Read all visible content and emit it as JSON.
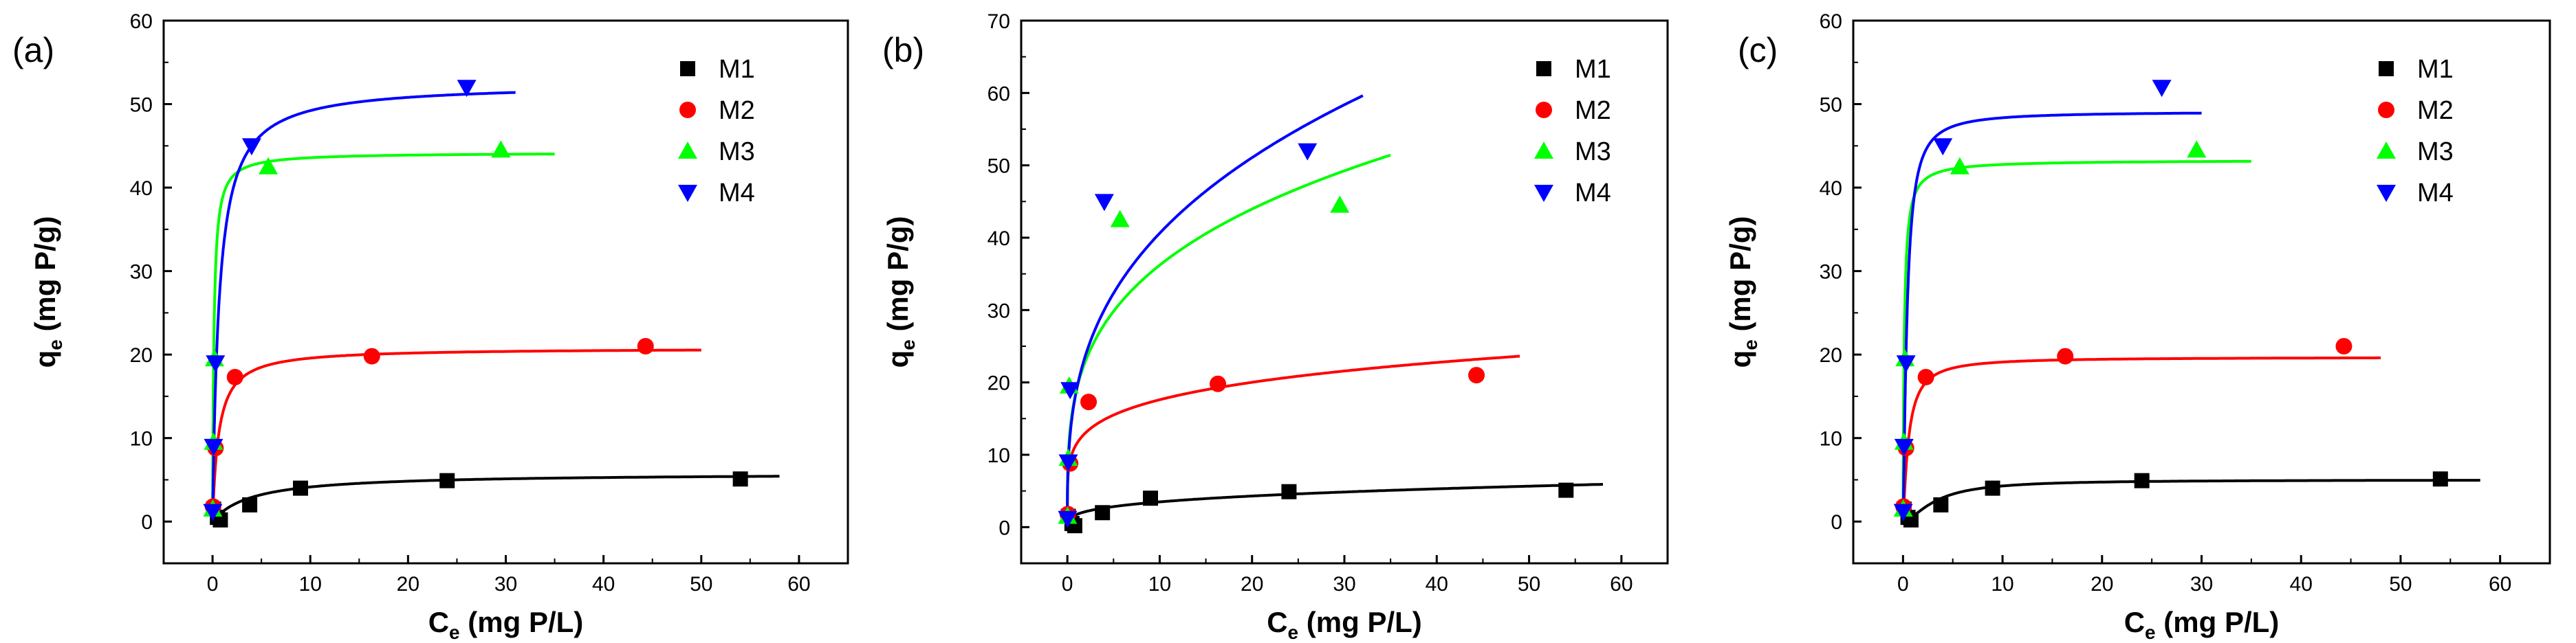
{
  "figure": {
    "panels": [
      {
        "panel_label": "(a)",
        "chart_data": {
          "type": "scatter",
          "xlabel": "C",
          "xlabel_sub": "e",
          "xlabel_unit": "(mg P/L)",
          "ylabel": "q",
          "ylabel_sub": "e",
          "ylabel_unit": "(mg P/g)",
          "xlim": [
            -5,
            65
          ],
          "ylim": [
            -5,
            60
          ],
          "xticks": [
            0,
            10,
            20,
            30,
            40,
            50,
            60
          ],
          "yticks": [
            0,
            10,
            20,
            30,
            40,
            50,
            60
          ],
          "xtick_labels": [
            "0",
            "10",
            "20",
            "30",
            "40",
            "50",
            "60"
          ],
          "ytick_labels": [
            "0",
            "10",
            "20",
            "30",
            "40",
            "50",
            "60"
          ],
          "legend_position": "top-right",
          "series": [
            {
              "name": "M1",
              "color": "#000000",
              "marker": "square",
              "points": [
                [
                  0.1,
                  1.5
                ],
                [
                  0.5,
                  0.5
                ],
                [
                  0.8,
                  0.2
                ],
                [
                  3.8,
                  2.0
                ],
                [
                  9.0,
                  4.0
                ],
                [
                  24.0,
                  4.9
                ],
                [
                  54.0,
                  5.1
                ]
              ],
              "fit": {
                "model": "langmuir",
                "qmax": 5.8,
                "K": 0.25,
                "xmax": 58
              }
            },
            {
              "name": "M2",
              "color": "#ff0000",
              "marker": "circle",
              "points": [
                [
                  0.05,
                  1.8
                ],
                [
                  0.3,
                  8.8
                ],
                [
                  2.3,
                  17.3
                ],
                [
                  16.3,
                  19.8
                ],
                [
                  44.3,
                  21.0
                ]
              ],
              "fit": {
                "model": "langmuir",
                "qmax": 20.8,
                "K": 1.6,
                "xmax": 50
              }
            },
            {
              "name": "M3",
              "color": "#00ff00",
              "marker": "triangle-up",
              "points": [
                [
                  0.02,
                  1.5
                ],
                [
                  0.1,
                  9.5
                ],
                [
                  0.2,
                  19.5
                ],
                [
                  5.7,
                  42.5
                ],
                [
                  29.5,
                  44.5
                ]
              ],
              "fit": {
                "model": "langmuir",
                "qmax": 44.2,
                "K": 7.0,
                "xmax": 35
              }
            },
            {
              "name": "M4",
              "color": "#0000ff",
              "marker": "triangle-down",
              "points": [
                [
                  0.02,
                  1.2
                ],
                [
                  0.1,
                  9.0
                ],
                [
                  0.3,
                  19.0
                ],
                [
                  4.0,
                  45.0
                ],
                [
                  26.0,
                  52.0
                ]
              ],
              "fit": {
                "model": "langmuir",
                "qmax": 52.5,
                "K": 1.5,
                "xmax": 31
              }
            }
          ]
        }
      },
      {
        "panel_label": "(b)",
        "chart_data": {
          "type": "scatter",
          "xlabel": "C",
          "xlabel_sub": "e",
          "xlabel_unit": "(mg P/L)",
          "ylabel": "q",
          "ylabel_sub": "e",
          "ylabel_unit": "(mg P/g)",
          "xlim": [
            -5,
            65
          ],
          "ylim": [
            -5,
            70
          ],
          "xticks": [
            0,
            10,
            20,
            30,
            40,
            50,
            60
          ],
          "yticks": [
            0,
            10,
            20,
            30,
            40,
            50,
            60,
            70
          ],
          "xtick_labels": [
            "0",
            "10",
            "20",
            "30",
            "40",
            "50",
            "60"
          ],
          "ytick_labels": [
            "0",
            "10",
            "20",
            "30",
            "40",
            "50",
            "60",
            "70"
          ],
          "legend_position": "top-right",
          "series": [
            {
              "name": "M1",
              "color": "#000000",
              "marker": "square",
              "points": [
                [
                  0.1,
                  1.5
                ],
                [
                  0.5,
                  0.5
                ],
                [
                  0.8,
                  0.2
                ],
                [
                  3.8,
                  2.0
                ],
                [
                  9.0,
                  4.0
                ],
                [
                  24.0,
                  4.9
                ],
                [
                  54.0,
                  5.1
                ]
              ],
              "fit": {
                "model": "freundlich",
                "K": 1.75,
                "n": 0.3,
                "xmax": 58
              }
            },
            {
              "name": "M2",
              "color": "#ff0000",
              "marker": "circle",
              "points": [
                [
                  0.05,
                  1.8
                ],
                [
                  0.3,
                  8.8
                ],
                [
                  2.3,
                  17.3
                ],
                [
                  16.3,
                  19.8
                ],
                [
                  44.3,
                  21.0
                ]
              ],
              "fit": {
                "model": "freundlich",
                "K": 11.5,
                "n": 0.185,
                "xmax": 49
              }
            },
            {
              "name": "M3",
              "color": "#00ff00",
              "marker": "triangle-up",
              "points": [
                [
                  0.02,
                  1.5
                ],
                [
                  0.1,
                  9.5
                ],
                [
                  0.2,
                  19.5
                ],
                [
                  5.7,
                  42.5
                ],
                [
                  29.5,
                  44.5
                ]
              ],
              "fit": {
                "model": "freundlich",
                "K": 19.0,
                "n": 0.28,
                "xmax": 35
              }
            },
            {
              "name": "M4",
              "color": "#0000ff",
              "marker": "triangle-down",
              "points": [
                [
                  0.02,
                  1.2
                ],
                [
                  0.1,
                  9.0
                ],
                [
                  0.3,
                  19.0
                ],
                [
                  4.0,
                  45.0
                ],
                [
                  26.0,
                  52.0
                ]
              ],
              "fit": {
                "model": "freundlich",
                "K": 19.0,
                "n": 0.33,
                "xmax": 32
              }
            }
          ]
        }
      },
      {
        "panel_label": "(c)",
        "chart_data": {
          "type": "scatter",
          "xlabel": "C",
          "xlabel_sub": "e",
          "xlabel_unit": "(mg P/L)",
          "ylabel": "q",
          "ylabel_sub": "e",
          "ylabel_unit": "(mg P/g)",
          "xlim": [
            -5,
            65
          ],
          "ylim": [
            -5,
            60
          ],
          "xticks": [
            0,
            10,
            20,
            30,
            40,
            50,
            60
          ],
          "yticks": [
            0,
            10,
            20,
            30,
            40,
            50,
            60
          ],
          "xtick_labels": [
            "0",
            "10",
            "20",
            "30",
            "40",
            "50",
            "60"
          ],
          "ytick_labels": [
            "0",
            "10",
            "20",
            "30",
            "40",
            "50",
            "60"
          ],
          "legend_position": "top-right",
          "series": [
            {
              "name": "M1",
              "color": "#000000",
              "marker": "square",
              "points": [
                [
                  0.1,
                  1.5
                ],
                [
                  0.5,
                  0.5
                ],
                [
                  0.8,
                  0.2
                ],
                [
                  3.8,
                  2.0
                ],
                [
                  9.0,
                  4.0
                ],
                [
                  24.0,
                  4.9
                ],
                [
                  54.0,
                  5.1
                ]
              ],
              "fit": {
                "model": "sips",
                "qmax": 5.0,
                "K": 0.3,
                "n": 1.6,
                "xmax": 58
              }
            },
            {
              "name": "M2",
              "color": "#ff0000",
              "marker": "circle",
              "points": [
                [
                  0.05,
                  1.8
                ],
                [
                  0.3,
                  8.8
                ],
                [
                  2.3,
                  17.3
                ],
                [
                  16.3,
                  19.8
                ],
                [
                  44.3,
                  21.0
                ]
              ],
              "fit": {
                "model": "sips",
                "qmax": 19.7,
                "K": 1.8,
                "n": 1.2,
                "xmax": 48
              }
            },
            {
              "name": "M3",
              "color": "#00ff00",
              "marker": "triangle-up",
              "points": [
                [
                  0.02,
                  1.5
                ],
                [
                  0.1,
                  9.5
                ],
                [
                  0.2,
                  19.5
                ],
                [
                  5.7,
                  42.5
                ],
                [
                  29.5,
                  44.5
                ]
              ],
              "fit": {
                "model": "sips",
                "qmax": 43.3,
                "K": 8.0,
                "n": 1.0,
                "xmax": 35
              }
            },
            {
              "name": "M4",
              "color": "#0000ff",
              "marker": "triangle-down",
              "points": [
                [
                  0.02,
                  1.2
                ],
                [
                  0.1,
                  9.0
                ],
                [
                  0.3,
                  19.0
                ],
                [
                  4.0,
                  45.0
                ],
                [
                  26.0,
                  52.0
                ]
              ],
              "fit": {
                "model": "sips",
                "qmax": 49.1,
                "K": 2.5,
                "n": 1.3,
                "xmax": 30
              }
            }
          ]
        }
      }
    ]
  }
}
